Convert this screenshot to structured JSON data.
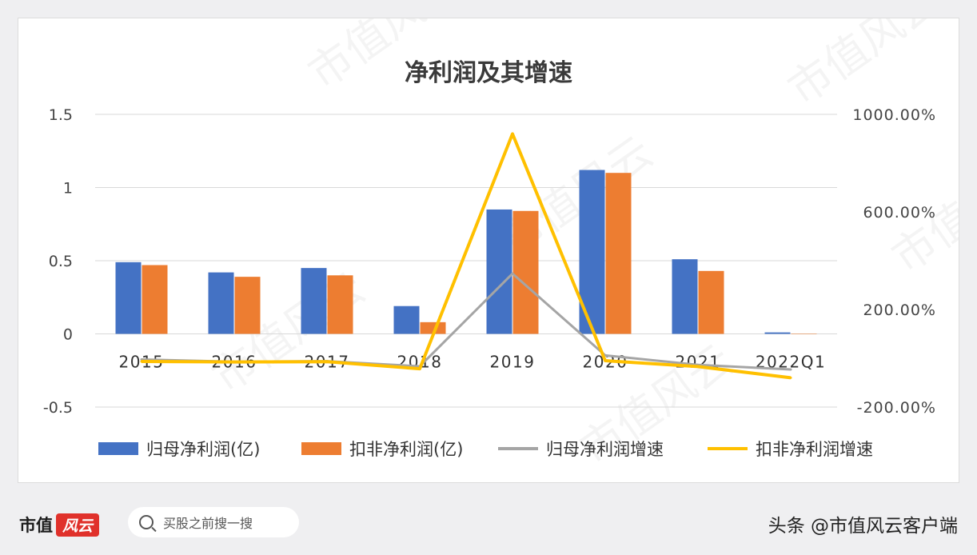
{
  "chart_data": {
    "type": "bar",
    "title": "净利润及其增速",
    "categories": [
      "2015",
      "2016",
      "2017",
      "2018",
      "2019",
      "2020",
      "2021",
      "2022Q1"
    ],
    "series": [
      {
        "name": "归母净利润(亿)",
        "type": "bar",
        "axis": "left",
        "color": "#4472c4",
        "values": [
          0.49,
          0.42,
          0.45,
          0.19,
          0.85,
          1.12,
          0.51,
          0.01
        ]
      },
      {
        "name": "扣非净利润(亿)",
        "type": "bar",
        "axis": "left",
        "color": "#ed7d31",
        "values": [
          0.47,
          0.39,
          0.4,
          0.08,
          0.84,
          1.1,
          0.43,
          0.0
        ]
      },
      {
        "name": "归母净利润增速",
        "type": "line",
        "axis": "right",
        "color": "#a5a5a5",
        "values": [
          -0.05,
          -0.14,
          -0.12,
          -0.33,
          3.47,
          0.12,
          -0.27,
          -0.46
        ]
      },
      {
        "name": "扣非净利润增速",
        "type": "line",
        "axis": "right",
        "color": "#ffc000",
        "values": [
          -0.13,
          -0.15,
          -0.14,
          -0.43,
          9.2,
          -0.1,
          -0.34,
          -0.8
        ]
      }
    ],
    "left_axis": {
      "ylim": [
        -0.5,
        1.5
      ],
      "ticks": [
        1.5,
        1,
        0.5,
        0,
        -0.5
      ],
      "tick_labels": [
        "1.5",
        "1",
        "0.5",
        "0",
        "-0.5"
      ]
    },
    "right_axis": {
      "ylim": [
        -2,
        10
      ],
      "ticks": [
        10,
        6,
        2,
        -2
      ],
      "tick_labels": [
        "1000.00%",
        "600.00%",
        "200.00%",
        "-200.00%"
      ]
    },
    "grid": true,
    "legend": "bottom"
  },
  "footer": {
    "brand_text": "市值",
    "brand_badge": "风云",
    "search_placeholder": "买股之前搜一搜",
    "source": "头条 @市值风云客户端"
  },
  "watermark": "市值风云",
  "colors": {
    "bar1": "#4472c4",
    "bar2": "#ed7d31",
    "line1": "#a5a5a5",
    "line2": "#ffc000"
  }
}
